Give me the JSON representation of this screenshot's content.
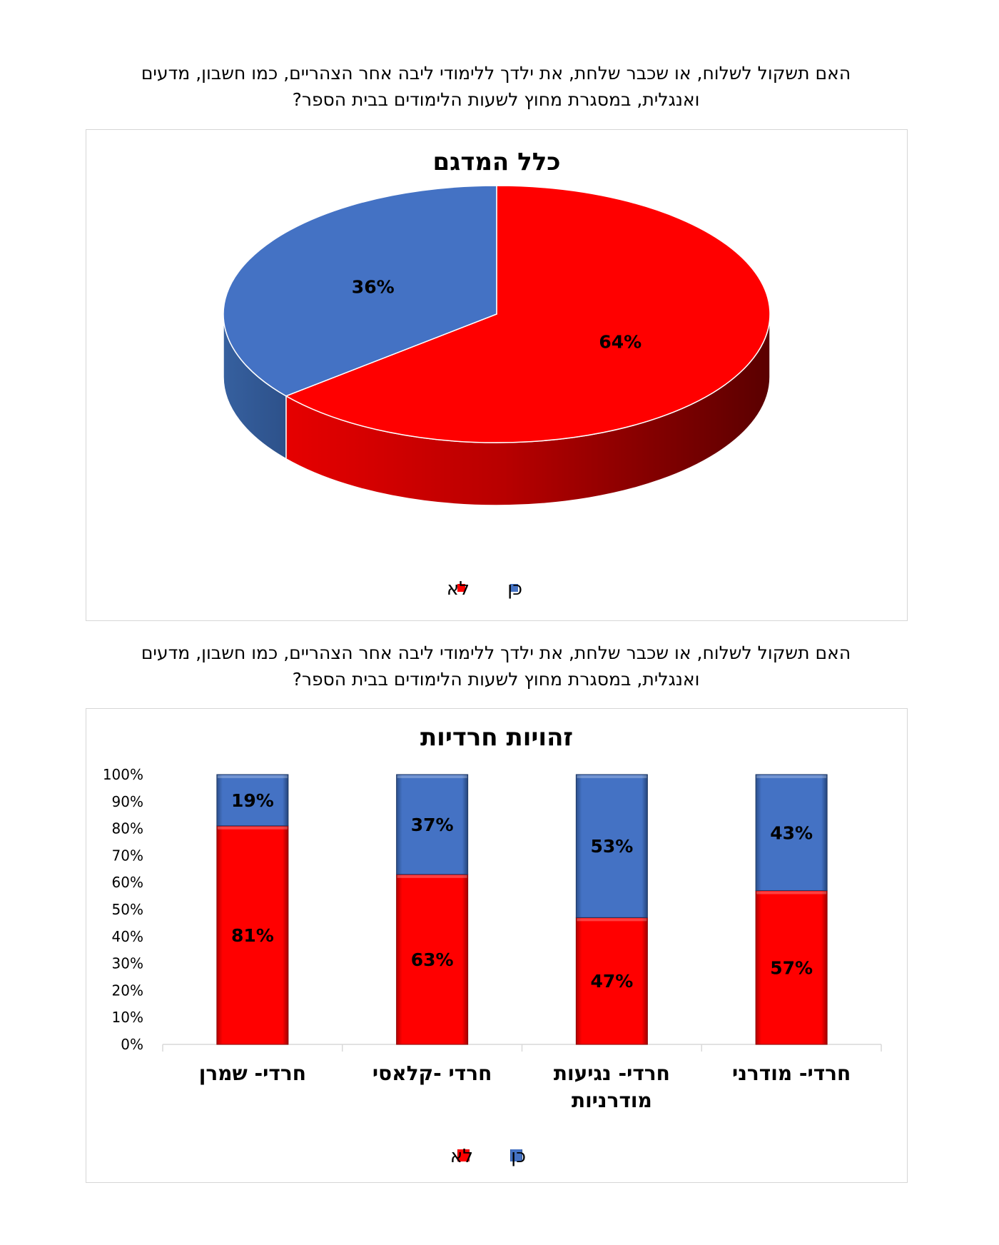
{
  "questions": {
    "q1_line1": "האם תשקול לשלוח, או שכבר שלחת, את ילדך ללימודי ליבה אחר הצהריים, כמו חשבון, מדעים",
    "q1_line2": "ואנגלית, במסגרת מחוץ לשעות הלימודים בבית הספר?",
    "q2_line1": "האם תשקול לשלוח, או שכבר שלחת, את ילדך ללימודי ליבה אחר הצהריים, כמו חשבון, מדעים",
    "q2_line2": "ואנגלית, במסגרת מחוץ לשעות הלימודים בבית הספר?"
  },
  "colors": {
    "no": "#ff0000",
    "yes": "#4472c4"
  },
  "chart_data": [
    {
      "type": "pie",
      "title": "כלל המדגם",
      "slices": [
        {
          "name": "לא",
          "value": 64,
          "label": "64%",
          "color": "#ff0000"
        },
        {
          "name": "כן",
          "value": 36,
          "label": "36%",
          "color": "#4472c4"
        }
      ],
      "legend": [
        "לא",
        "כן"
      ],
      "legend_position": "bottom"
    },
    {
      "type": "bar",
      "stacked": true,
      "percent": true,
      "title": "זהויות חרדיות",
      "categories": [
        "חרדי- שמרן",
        "חרדי -קלאסי",
        "חרדי- נגיעות מודרניות",
        "חרדי- מודרני"
      ],
      "category_lines": [
        [
          "חרדי- שמרן"
        ],
        [
          "חרדי -קלאסי"
        ],
        [
          "חרדי- נגיעות",
          "מודרניות"
        ],
        [
          "חרדי- מודרני"
        ]
      ],
      "series": [
        {
          "name": "לא",
          "values": [
            81,
            63,
            47,
            57
          ],
          "labels": [
            "81%",
            "63%",
            "47%",
            "57%"
          ],
          "color": "#ff0000"
        },
        {
          "name": "כן",
          "values": [
            19,
            37,
            53,
            43
          ],
          "labels": [
            "19%",
            "37%",
            "53%",
            "43%"
          ],
          "color": "#4472c4"
        }
      ],
      "y_ticks": [
        "0%",
        "10%",
        "20%",
        "30%",
        "40%",
        "50%",
        "60%",
        "70%",
        "80%",
        "90%",
        "100%"
      ],
      "ylim": [
        0,
        100
      ],
      "grid": false,
      "legend": [
        "לא",
        "כן"
      ],
      "legend_position": "bottom"
    }
  ]
}
